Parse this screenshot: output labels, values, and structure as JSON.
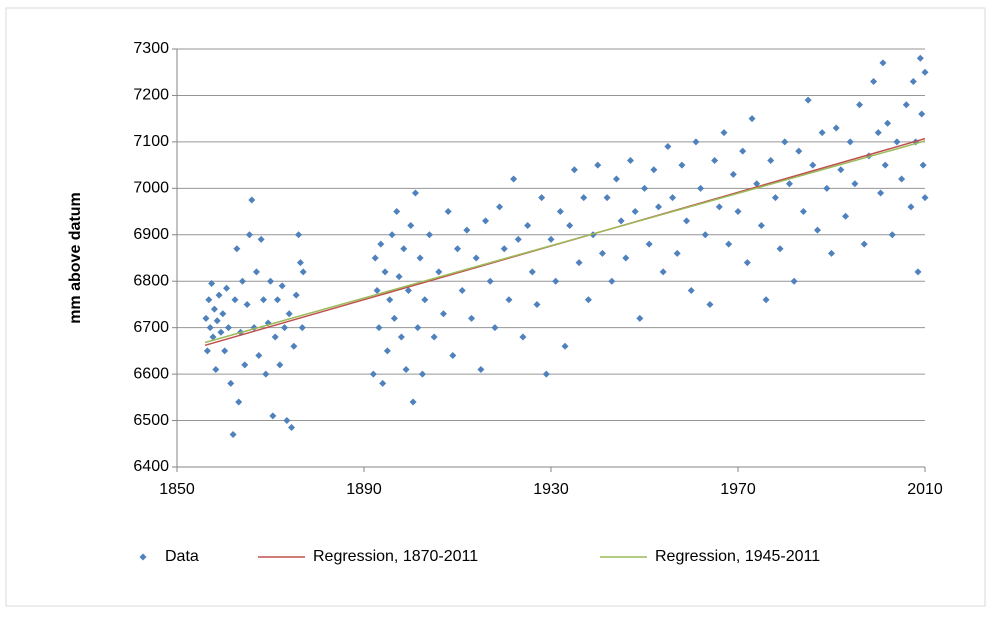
{
  "chart_data": {
    "type": "scatter",
    "y_label": "mm above datum",
    "xlim": [
      1850,
      2010
    ],
    "xticks": [
      1850,
      1890,
      1930,
      1970,
      2010
    ],
    "ylim": [
      6400,
      7300
    ],
    "yticks": [
      6400,
      6500,
      6600,
      6700,
      6800,
      6900,
      7000,
      7100,
      7200,
      7300
    ],
    "grid": true,
    "legend": "bottom",
    "series": [
      {
        "name": "Data",
        "color": "#4f81bd",
        "mode": "markers",
        "x": [
          1856.2,
          1856.5,
          1856.8,
          1857.1,
          1857.4,
          1857.7,
          1858.0,
          1858.3,
          1858.6,
          1859.0,
          1859.4,
          1859.8,
          1860.2,
          1860.6,
          1861.0,
          1861.5,
          1862.0,
          1862.4,
          1862.8,
          1863.2,
          1863.6,
          1864.0,
          1864.5,
          1865.0,
          1865.5,
          1866.0,
          1866.5,
          1867.0,
          1867.5,
          1868.0,
          1868.5,
          1869.0,
          1869.5,
          1870.0,
          1870.5,
          1871.0,
          1871.5,
          1872.0,
          1872.5,
          1873.0,
          1873.5,
          1874.0,
          1874.5,
          1875.0,
          1875.5,
          1876.0,
          1876.4,
          1876.8,
          1877.0,
          1892.0,
          1892.4,
          1892.8,
          1893.2,
          1893.6,
          1894.0,
          1894.5,
          1895.0,
          1895.5,
          1896.0,
          1896.5,
          1897.0,
          1897.5,
          1898.0,
          1898.5,
          1899.0,
          1899.5,
          1900.0,
          1900.5,
          1901.0,
          1901.5,
          1902.0,
          1902.5,
          1903.0,
          1904.0,
          1905.0,
          1906.0,
          1907.0,
          1908.0,
          1909.0,
          1910.0,
          1911.0,
          1912.0,
          1913.0,
          1914.0,
          1915.0,
          1916.0,
          1917.0,
          1918.0,
          1919.0,
          1920.0,
          1921.0,
          1922.0,
          1923.0,
          1924.0,
          1925.0,
          1926.0,
          1927.0,
          1928.0,
          1929.0,
          1930.0,
          1931.0,
          1932.0,
          1933.0,
          1934.0,
          1935.0,
          1936.0,
          1937.0,
          1938.0,
          1939.0,
          1940.0,
          1941.0,
          1942.0,
          1943.0,
          1944.0,
          1945.0,
          1946.0,
          1947.0,
          1948.0,
          1949.0,
          1950.0,
          1951.0,
          1952.0,
          1953.0,
          1954.0,
          1955.0,
          1956.0,
          1957.0,
          1958.0,
          1959.0,
          1960.0,
          1961.0,
          1962.0,
          1963.0,
          1964.0,
          1965.0,
          1966.0,
          1967.0,
          1968.0,
          1969.0,
          1970.0,
          1971.0,
          1972.0,
          1973.0,
          1974.0,
          1975.0,
          1976.0,
          1977.0,
          1978.0,
          1979.0,
          1980.0,
          1981.0,
          1982.0,
          1983.0,
          1984.0,
          1985.0,
          1986.0,
          1987.0,
          1988.0,
          1989.0,
          1990.0,
          1991.0,
          1992.0,
          1993.0,
          1994.0,
          1995.0,
          1996.0,
          1997.0,
          1998.0,
          1999.0,
          2000.0,
          2000.5,
          2001.0,
          2001.5,
          2002.0,
          2003.0,
          2004.0,
          2005.0,
          2006.0,
          2007.0,
          2007.5,
          2008.0,
          2008.5,
          2009.0,
          2009.3,
          2009.6,
          2010.0,
          2010.0
        ],
        "values": [
          6720,
          6650,
          6760,
          6700,
          6795,
          6680,
          6740,
          6610,
          6715,
          6770,
          6690,
          6730,
          6650,
          6785,
          6700,
          6580,
          6470,
          6760,
          6870,
          6540,
          6690,
          6800,
          6620,
          6750,
          6900,
          6975,
          6700,
          6820,
          6640,
          6890,
          6760,
          6600,
          6710,
          6800,
          6510,
          6680,
          6760,
          6620,
          6790,
          6700,
          6500,
          6730,
          6485,
          6660,
          6770,
          6900,
          6840,
          6700,
          6820,
          6600,
          6850,
          6780,
          6700,
          6880,
          6580,
          6820,
          6650,
          6760,
          6900,
          6720,
          6950,
          6810,
          6680,
          6870,
          6610,
          6780,
          6920,
          6540,
          6990,
          6700,
          6850,
          6600,
          6760,
          6900,
          6680,
          6820,
          6730,
          6950,
          6640,
          6870,
          6780,
          6910,
          6720,
          6850,
          6610,
          6930,
          6800,
          6700,
          6960,
          6870,
          6760,
          7020,
          6890,
          6680,
          6920,
          6820,
          6750,
          6980,
          6600,
          6890,
          6800,
          6950,
          6660,
          6920,
          7040,
          6840,
          6980,
          6760,
          6900,
          7050,
          6860,
          6980,
          6800,
          7020,
          6930,
          6850,
          7060,
          6950,
          6720,
          7000,
          6880,
          7040,
          6960,
          6820,
          7090,
          6980,
          6860,
          7050,
          6930,
          6780,
          7100,
          7000,
          6900,
          6750,
          7060,
          6960,
          7120,
          6880,
          7030,
          6950,
          7080,
          6840,
          7150,
          7010,
          6920,
          6760,
          7060,
          6980,
          6870,
          7100,
          7010,
          6800,
          7080,
          6950,
          7190,
          7050,
          6910,
          7120,
          7000,
          6860,
          7130,
          7040,
          6940,
          7100,
          7010,
          7180,
          6880,
          7070,
          7230,
          7120,
          6990,
          7270,
          7050,
          7140,
          6900,
          7100,
          7020,
          7180,
          6960,
          7230,
          7100,
          6820,
          7280,
          7160,
          7050,
          7250,
          6980
        ]
      },
      {
        "name": "Regression, 1870-2011",
        "color": "#c0504d",
        "mode": "line",
        "x": [
          1856,
          2010
        ],
        "values": [
          6662,
          7107
        ]
      },
      {
        "name": "Regression, 1945-2011",
        "color": "#9bbb59",
        "mode": "line",
        "x": [
          1856,
          2010
        ],
        "values": [
          6668,
          7102
        ]
      }
    ]
  }
}
